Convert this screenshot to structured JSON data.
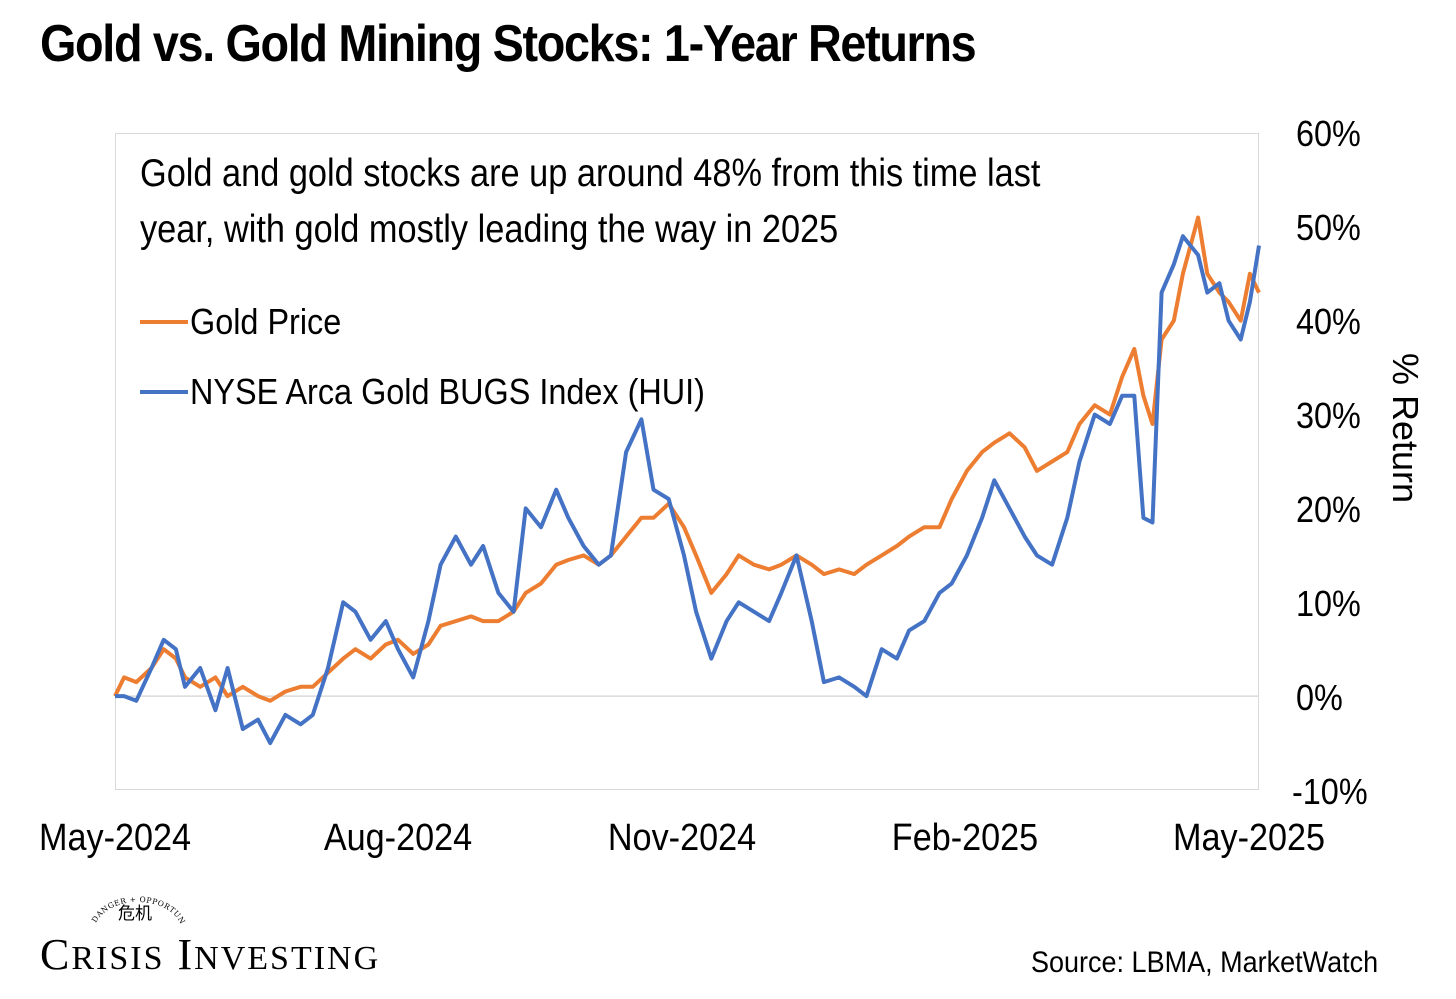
{
  "title": "Gold vs. Gold Mining Stocks: 1-Year Returns",
  "annotation": {
    "line1": "Gold and gold stocks are up around 48% from this time last",
    "line2": "year, with gold mostly leading the way in 2025"
  },
  "source": "Source: LBMA, MarketWatch",
  "logo": {
    "arc_text": "DANGER + OPPORTUNITY",
    "seal_text": "危机",
    "name_c": "C",
    "name_risis": "RISIS",
    "name_i": "I",
    "name_nvesting": "NVESTING"
  },
  "colors": {
    "gold": "#ED7D31",
    "hui": "#4472C4",
    "grid": "#d9d9d9"
  },
  "chart_data": {
    "type": "line",
    "title": "Gold vs. Gold Mining Stocks: 1-Year Returns",
    "xlabel": "",
    "ylabel": "% Return",
    "ylim": [
      -10,
      60
    ],
    "yticks": [
      "60%",
      "50%",
      "40%",
      "30%",
      "20%",
      "10%",
      "0%",
      "-10%"
    ],
    "xticks": [
      "May-2024",
      "Aug-2024",
      "Nov-2024",
      "Feb-2025",
      "May-2025"
    ],
    "legend_position": "top-left",
    "grid": false,
    "series": [
      {
        "name": "Gold Price",
        "color": "#ED7D31",
        "points": [
          [
            "2024-05-01",
            0
          ],
          [
            "2024-05-04",
            2
          ],
          [
            "2024-05-08",
            1.5
          ],
          [
            "2024-05-13",
            3
          ],
          [
            "2024-05-17",
            5
          ],
          [
            "2024-05-21",
            4
          ],
          [
            "2024-05-24",
            2
          ],
          [
            "2024-05-29",
            1
          ],
          [
            "2024-06-03",
            2
          ],
          [
            "2024-06-07",
            0
          ],
          [
            "2024-06-12",
            1
          ],
          [
            "2024-06-17",
            0
          ],
          [
            "2024-06-21",
            -0.5
          ],
          [
            "2024-06-26",
            0.5
          ],
          [
            "2024-07-01",
            1
          ],
          [
            "2024-07-05",
            1
          ],
          [
            "2024-07-10",
            2.5
          ],
          [
            "2024-07-15",
            4
          ],
          [
            "2024-07-19",
            5
          ],
          [
            "2024-07-24",
            4
          ],
          [
            "2024-07-29",
            5.5
          ],
          [
            "2024-08-02",
            6
          ],
          [
            "2024-08-07",
            4.5
          ],
          [
            "2024-08-12",
            5.5
          ],
          [
            "2024-08-16",
            7.5
          ],
          [
            "2024-08-21",
            8
          ],
          [
            "2024-08-26",
            8.5
          ],
          [
            "2024-08-30",
            8
          ],
          [
            "2024-09-04",
            8
          ],
          [
            "2024-09-09",
            9
          ],
          [
            "2024-09-13",
            11
          ],
          [
            "2024-09-18",
            12
          ],
          [
            "2024-09-23",
            14
          ],
          [
            "2024-09-27",
            14.5
          ],
          [
            "2024-10-02",
            15
          ],
          [
            "2024-10-07",
            14
          ],
          [
            "2024-10-11",
            15
          ],
          [
            "2024-10-16",
            17
          ],
          [
            "2024-10-21",
            19
          ],
          [
            "2024-10-25",
            19
          ],
          [
            "2024-10-30",
            20.5
          ],
          [
            "2024-11-04",
            18
          ],
          [
            "2024-11-08",
            15
          ],
          [
            "2024-11-13",
            11
          ],
          [
            "2024-11-18",
            13
          ],
          [
            "2024-11-22",
            15
          ],
          [
            "2024-11-27",
            14
          ],
          [
            "2024-12-02",
            13.5
          ],
          [
            "2024-12-06",
            14
          ],
          [
            "2024-12-11",
            15
          ],
          [
            "2024-12-16",
            14
          ],
          [
            "2024-12-20",
            13
          ],
          [
            "2024-12-25",
            13.5
          ],
          [
            "2024-12-30",
            13
          ],
          [
            "2025-01-03",
            14
          ],
          [
            "2025-01-08",
            15
          ],
          [
            "2025-01-13",
            16
          ],
          [
            "2025-01-17",
            17
          ],
          [
            "2025-01-22",
            18
          ],
          [
            "2025-01-27",
            18
          ],
          [
            "2025-01-31",
            21
          ],
          [
            "2025-02-05",
            24
          ],
          [
            "2025-02-10",
            26
          ],
          [
            "2025-02-14",
            27
          ],
          [
            "2025-02-19",
            28
          ],
          [
            "2025-02-24",
            26.5
          ],
          [
            "2025-02-28",
            24
          ],
          [
            "2025-03-05",
            25
          ],
          [
            "2025-03-10",
            26
          ],
          [
            "2025-03-14",
            29
          ],
          [
            "2025-03-19",
            31
          ],
          [
            "2025-03-24",
            30
          ],
          [
            "2025-03-28",
            34
          ],
          [
            "2025-04-01",
            37
          ],
          [
            "2025-04-04",
            32
          ],
          [
            "2025-04-07",
            29
          ],
          [
            "2025-04-10",
            38
          ],
          [
            "2025-04-14",
            40
          ],
          [
            "2025-04-17",
            45
          ],
          [
            "2025-04-22",
            51
          ],
          [
            "2025-04-25",
            45
          ],
          [
            "2025-04-29",
            43
          ],
          [
            "2025-05-02",
            42
          ],
          [
            "2025-05-06",
            40
          ],
          [
            "2025-05-09",
            45
          ],
          [
            "2025-05-12",
            43
          ]
        ]
      },
      {
        "name": "NYSE Arca Gold BUGS Index (HUI)",
        "color": "#4472C4",
        "points": [
          [
            "2024-05-01",
            0
          ],
          [
            "2024-05-04",
            0
          ],
          [
            "2024-05-08",
            -0.5
          ],
          [
            "2024-05-13",
            3
          ],
          [
            "2024-05-17",
            6
          ],
          [
            "2024-05-21",
            5
          ],
          [
            "2024-05-24",
            1
          ],
          [
            "2024-05-29",
            3
          ],
          [
            "2024-06-03",
            -1.5
          ],
          [
            "2024-06-07",
            3
          ],
          [
            "2024-06-12",
            -3.5
          ],
          [
            "2024-06-17",
            -2.5
          ],
          [
            "2024-06-21",
            -5
          ],
          [
            "2024-06-26",
            -2
          ],
          [
            "2024-07-01",
            -3
          ],
          [
            "2024-07-05",
            -2
          ],
          [
            "2024-07-10",
            3
          ],
          [
            "2024-07-15",
            10
          ],
          [
            "2024-07-19",
            9
          ],
          [
            "2024-07-24",
            6
          ],
          [
            "2024-07-29",
            8
          ],
          [
            "2024-08-02",
            5
          ],
          [
            "2024-08-07",
            2
          ],
          [
            "2024-08-12",
            8
          ],
          [
            "2024-08-16",
            14
          ],
          [
            "2024-08-21",
            17
          ],
          [
            "2024-08-26",
            14
          ],
          [
            "2024-08-30",
            16
          ],
          [
            "2024-09-04",
            11
          ],
          [
            "2024-09-09",
            9
          ],
          [
            "2024-09-13",
            20
          ],
          [
            "2024-09-18",
            18
          ],
          [
            "2024-09-23",
            22
          ],
          [
            "2024-09-27",
            19
          ],
          [
            "2024-10-02",
            16
          ],
          [
            "2024-10-07",
            14
          ],
          [
            "2024-10-11",
            15
          ],
          [
            "2024-10-16",
            26
          ],
          [
            "2024-10-21",
            29.5
          ],
          [
            "2024-10-25",
            22
          ],
          [
            "2024-10-30",
            21
          ],
          [
            "2024-11-04",
            15
          ],
          [
            "2024-11-08",
            9
          ],
          [
            "2024-11-13",
            4
          ],
          [
            "2024-11-18",
            8
          ],
          [
            "2024-11-22",
            10
          ],
          [
            "2024-11-27",
            9
          ],
          [
            "2024-12-02",
            8
          ],
          [
            "2024-12-06",
            11
          ],
          [
            "2024-12-11",
            15
          ],
          [
            "2024-12-16",
            8
          ],
          [
            "2024-12-20",
            1.5
          ],
          [
            "2024-12-25",
            2
          ],
          [
            "2024-12-30",
            1
          ],
          [
            "2025-01-03",
            0
          ],
          [
            "2025-01-08",
            5
          ],
          [
            "2025-01-13",
            4
          ],
          [
            "2025-01-17",
            7
          ],
          [
            "2025-01-22",
            8
          ],
          [
            "2025-01-27",
            11
          ],
          [
            "2025-01-31",
            12
          ],
          [
            "2025-02-05",
            15
          ],
          [
            "2025-02-10",
            19
          ],
          [
            "2025-02-14",
            23
          ],
          [
            "2025-02-19",
            20
          ],
          [
            "2025-02-24",
            17
          ],
          [
            "2025-02-28",
            15
          ],
          [
            "2025-03-05",
            14
          ],
          [
            "2025-03-10",
            19
          ],
          [
            "2025-03-14",
            25
          ],
          [
            "2025-03-19",
            30
          ],
          [
            "2025-03-24",
            29
          ],
          [
            "2025-03-28",
            32
          ],
          [
            "2025-04-01",
            32
          ],
          [
            "2025-04-04",
            19
          ],
          [
            "2025-04-07",
            18.5
          ],
          [
            "2025-04-10",
            43
          ],
          [
            "2025-04-14",
            46
          ],
          [
            "2025-04-17",
            49
          ],
          [
            "2025-04-22",
            47
          ],
          [
            "2025-04-25",
            43
          ],
          [
            "2025-04-29",
            44
          ],
          [
            "2025-05-02",
            40
          ],
          [
            "2025-05-06",
            38
          ],
          [
            "2025-05-09",
            42
          ],
          [
            "2025-05-12",
            48
          ]
        ]
      }
    ]
  }
}
